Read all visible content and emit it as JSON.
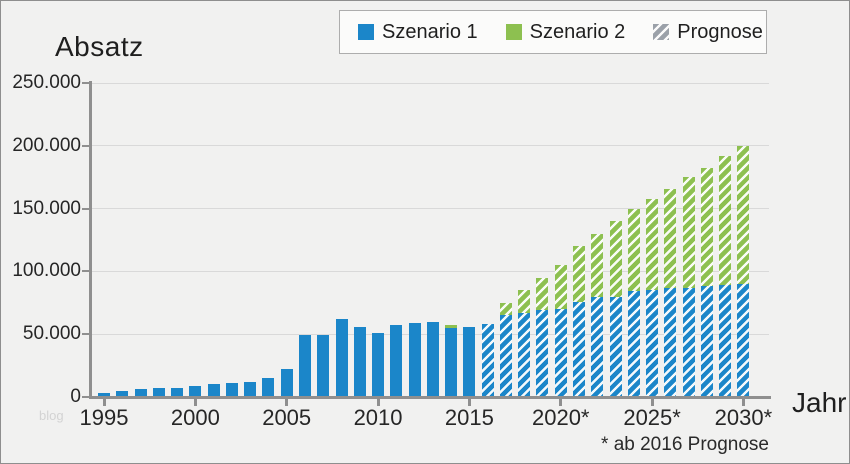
{
  "page": {
    "title": "Absatz",
    "x_axis_title": "Jahr",
    "footnote": "* ab 2016 Prognose",
    "watermark": "blog"
  },
  "legend": {
    "items": [
      {
        "label": "Szenario 1",
        "swatch": "szenario1-swatch"
      },
      {
        "label": "Szenario 2",
        "swatch": "szenario2-swatch"
      },
      {
        "label": "Prognose",
        "swatch": "prognose-swatch"
      }
    ]
  },
  "colors": {
    "szenario1_blue": "#1b86c9",
    "szenario2_green": "#8dc050",
    "prognose_gray": "#9ba1a9",
    "axis_gray": "#8f8f8f",
    "gridline_gray": "#d9d9d9",
    "background": "#f1f1f0"
  },
  "chart_data": {
    "type": "bar",
    "stacked": true,
    "title": "Absatz",
    "xlabel": "Jahr",
    "ylabel": "Absatz",
    "ylim": [
      0,
      250000
    ],
    "grid": true,
    "legend_position": "top",
    "footnote": "* ab 2016 Prognose",
    "forecast_from": 2016,
    "forecast_style": "diagonal-white-hatch",
    "ytick_values": [
      0,
      50000,
      100000,
      150000,
      200000,
      250000
    ],
    "ytick_labels": [
      "0",
      "50.000",
      "100.000",
      "150.000",
      "200.000",
      "250.000"
    ],
    "xtick_years": [
      1995,
      2000,
      2005,
      2010,
      2015,
      2020,
      2025,
      2030
    ],
    "xtick_labels": [
      "1995",
      "2000",
      "2005",
      "2010",
      "2015",
      "2020*",
      "2025*",
      "2030*"
    ],
    "categories": [
      1995,
      1996,
      1997,
      1998,
      1999,
      2000,
      2001,
      2002,
      2003,
      2004,
      2005,
      2006,
      2007,
      2008,
      2009,
      2010,
      2011,
      2012,
      2013,
      2014,
      2015,
      2016,
      2017,
      2018,
      2019,
      2020,
      2021,
      2022,
      2023,
      2024,
      2025,
      2026,
      2027,
      2028,
      2029,
      2030
    ],
    "series": [
      {
        "name": "Szenario 1",
        "color": "#1b86c9",
        "values": [
          3000,
          4500,
          6500,
          7500,
          7500,
          9000,
          10500,
          11000,
          12000,
          15000,
          22000,
          49000,
          49000,
          62000,
          56000,
          51000,
          57000,
          59000,
          60000,
          55000,
          56000,
          58000,
          65000,
          67000,
          69000,
          70000,
          76000,
          80000,
          80000,
          84000,
          85000,
          87000,
          87000,
          88000,
          89000,
          90000
        ]
      },
      {
        "name": "Szenario 2",
        "color": "#8dc050",
        "values": [
          0,
          0,
          0,
          0,
          0,
          0,
          0,
          0,
          0,
          0,
          0,
          0,
          0,
          0,
          0,
          0,
          0,
          0,
          0,
          2000,
          0,
          0,
          10000,
          18000,
          26000,
          35000,
          44000,
          50000,
          60000,
          66000,
          73000,
          79000,
          88000,
          94000,
          103000,
          110000
        ]
      }
    ]
  }
}
